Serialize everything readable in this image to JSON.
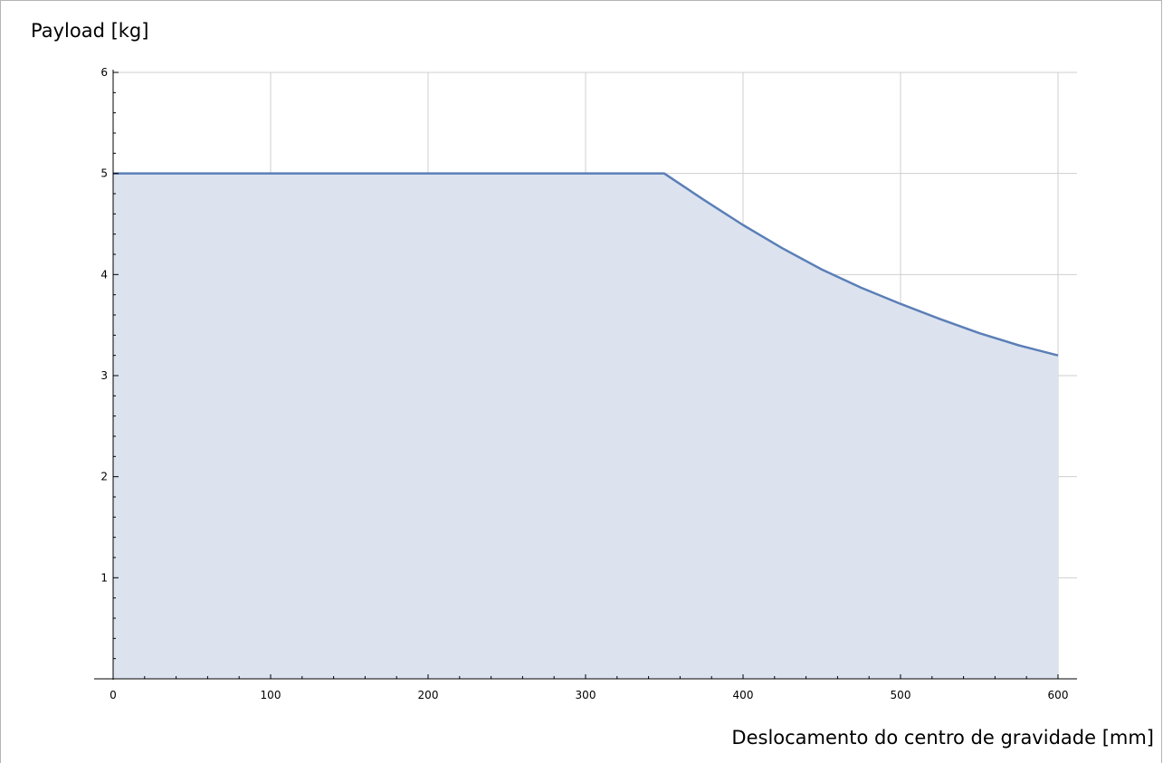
{
  "chart_data": {
    "type": "area",
    "title": "",
    "ylabel": "Payload [kg]",
    "xlabel": "Deslocamento do centro de gravidade [mm]",
    "xlim": [
      0,
      600
    ],
    "ylim": [
      0,
      6
    ],
    "xticks": [
      "0",
      "100",
      "200",
      "300",
      "400",
      "500",
      "600"
    ],
    "yticks": [
      "1",
      "2",
      "3",
      "4",
      "5",
      "6"
    ],
    "grid": true,
    "colors": {
      "line": "#5b7fb7",
      "fill": "#dce3ef",
      "grid": "#cfcfcf"
    },
    "x": [
      0,
      100,
      200,
      300,
      350,
      375,
      400,
      425,
      450,
      475,
      500,
      525,
      550,
      575,
      600
    ],
    "y": [
      5,
      5,
      5,
      5,
      5,
      4.74,
      4.49,
      4.26,
      4.05,
      3.87,
      3.71,
      3.56,
      3.42,
      3.3,
      3.2
    ]
  }
}
